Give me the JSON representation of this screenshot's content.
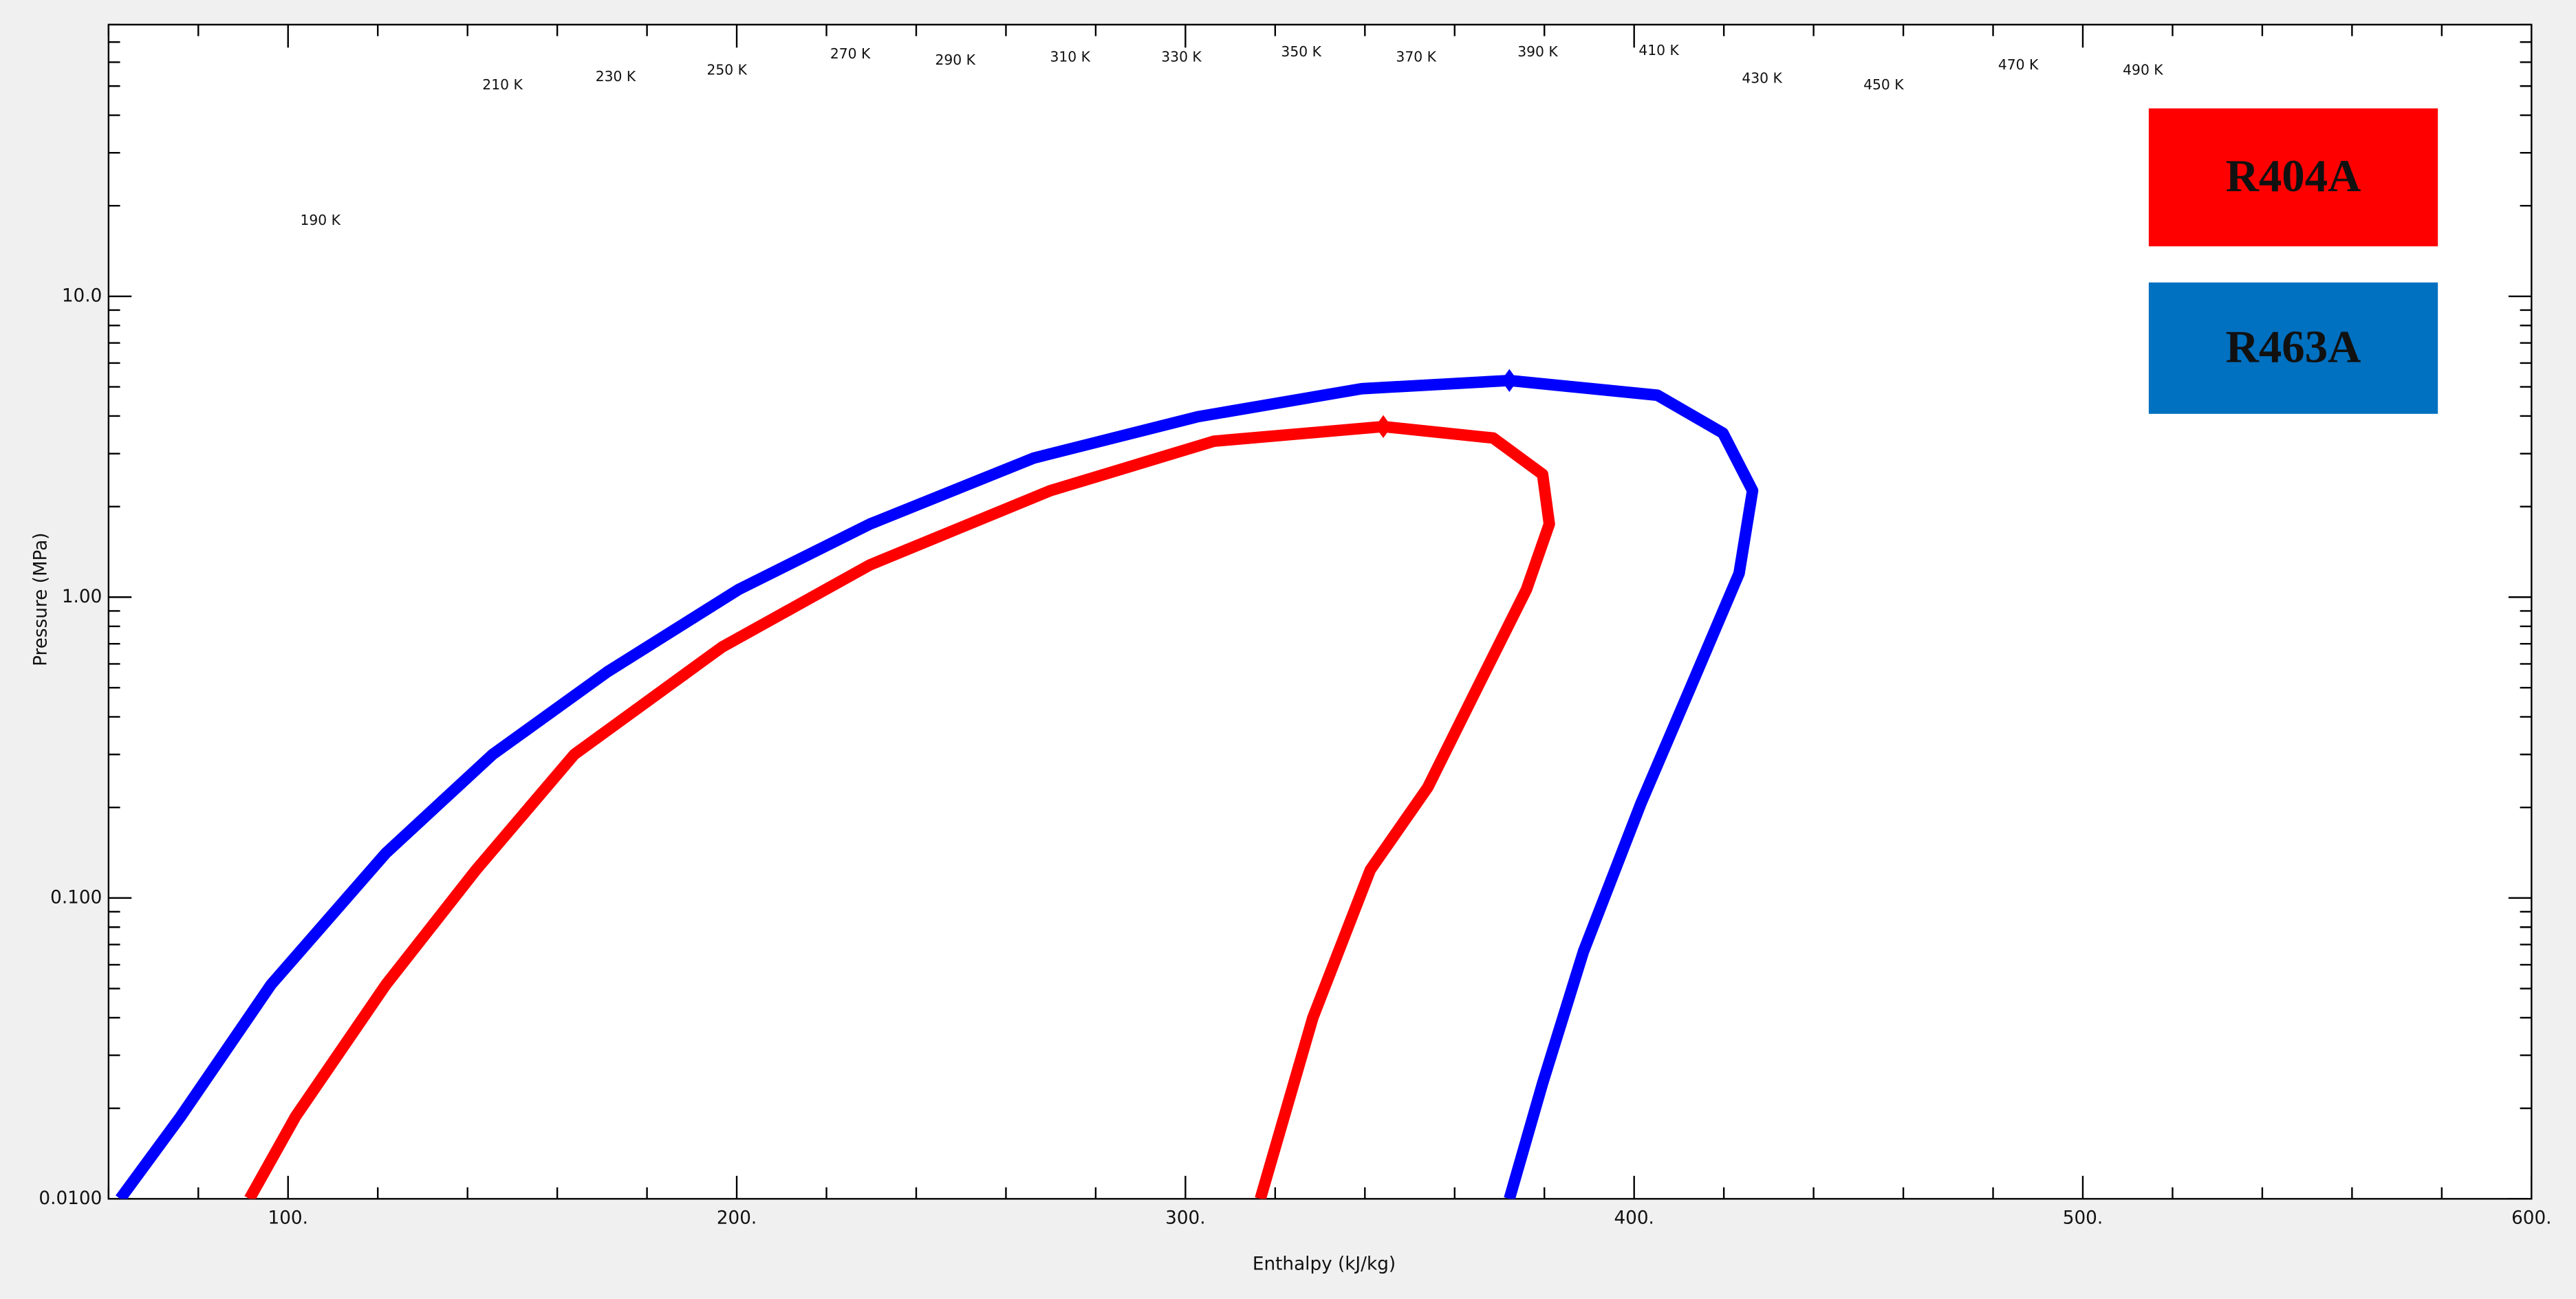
{
  "chart_data": {
    "type": "line",
    "x_label": "Enthalpy (kJ/kg)",
    "y_label": "Pressure (MPa)",
    "xlim": [
      60,
      600
    ],
    "ylim": [
      0.01,
      80
    ],
    "log_y": true,
    "xticks": [
      {
        "value": 100,
        "label": "100."
      },
      {
        "value": 200,
        "label": "200."
      },
      {
        "value": 300,
        "label": "300."
      },
      {
        "value": 400,
        "label": "400."
      },
      {
        "value": 500,
        "label": "500."
      },
      {
        "value": 600,
        "label": "600."
      }
    ],
    "xminor_ticks": [
      60,
      80,
      120,
      140,
      160,
      180,
      220,
      240,
      260,
      280,
      320,
      340,
      360,
      380,
      420,
      440,
      460,
      480,
      520,
      540,
      560,
      580
    ],
    "yticks": [
      {
        "value": 0.01,
        "label": "0.0100"
      },
      {
        "value": 0.1,
        "label": "0.100"
      },
      {
        "value": 1,
        "label": "1.00"
      },
      {
        "value": 10,
        "label": "10.0"
      }
    ],
    "yminor_ticks": [
      0.02,
      0.03,
      0.04,
      0.05,
      0.06,
      0.07,
      0.08,
      0.09,
      0.2,
      0.3,
      0.4,
      0.5,
      0.6,
      0.7,
      0.8,
      0.9,
      2,
      3,
      4,
      5,
      6,
      7,
      8,
      9,
      20,
      30,
      40,
      50,
      60,
      70,
      80
    ],
    "series": [
      {
        "name": "R463A",
        "color": "#0000ff",
        "legend_color": "#0070c0",
        "x": [
          62.6,
          76.1,
          96.2,
          121.8,
          145.6,
          171.2,
          200.4,
          229.7,
          266.2,
          302.8,
          339.3,
          372.2,
          405.2,
          419.8,
          426.4,
          423.4,
          412.5,
          401.5,
          388.7,
          379.6,
          372.2
        ],
        "values": [
          0.01,
          0.0188,
          0.0515,
          0.141,
          0.3,
          0.565,
          1.06,
          1.75,
          2.9,
          3.98,
          4.93,
          5.25,
          4.69,
          3.51,
          2.26,
          1.2,
          0.498,
          0.206,
          0.0663,
          0.0242,
          0.01
        ],
        "marker_x": 372.2,
        "marker_y": 5.25
      },
      {
        "name": "R404A",
        "color": "#ff0000",
        "legend_color": "#ff0000",
        "x": [
          91.4,
          101.7,
          121.8,
          141.9,
          163.8,
          196.7,
          229.7,
          269.9,
          306.4,
          344.1,
          368.6,
          379.6,
          381.1,
          376.0,
          365.0,
          354.0,
          341.2,
          328.4,
          316.7
        ],
        "values": [
          0.01,
          0.0188,
          0.0515,
          0.124,
          0.3,
          0.682,
          1.28,
          2.26,
          3.3,
          3.69,
          3.38,
          2.56,
          1.75,
          1.06,
          0.498,
          0.233,
          0.124,
          0.04,
          0.01
        ],
        "marker_x": 344.1,
        "marker_y": 3.69
      }
    ],
    "annotations": [
      {
        "text": "190 K",
        "x": 107.2,
        "y": 17.8
      },
      {
        "text": "210 K",
        "x": 147.8,
        "y": 50.1
      },
      {
        "text": "230 K",
        "x": 173.0,
        "y": 53.4
      },
      {
        "text": "250 K",
        "x": 197.8,
        "y": 56.1
      },
      {
        "text": "270 K",
        "x": 225.3,
        "y": 63.6
      },
      {
        "text": "290 K",
        "x": 248.7,
        "y": 60.6
      },
      {
        "text": "310 K",
        "x": 274.3,
        "y": 62.1
      },
      {
        "text": "330 K",
        "x": 299.1,
        "y": 62.1
      },
      {
        "text": "350 K",
        "x": 325.8,
        "y": 64.5
      },
      {
        "text": "370 K",
        "x": 351.4,
        "y": 62.1
      },
      {
        "text": "390 K",
        "x": 378.5,
        "y": 64.5
      },
      {
        "text": "410 K",
        "x": 405.5,
        "y": 65.3
      },
      {
        "text": "430 K",
        "x": 428.5,
        "y": 52.7
      },
      {
        "text": "450 K",
        "x": 455.6,
        "y": 50.1
      },
      {
        "text": "470 K",
        "x": 485.6,
        "y": 58.4
      },
      {
        "text": "490 K",
        "x": 513.4,
        "y": 56.1
      }
    ]
  }
}
